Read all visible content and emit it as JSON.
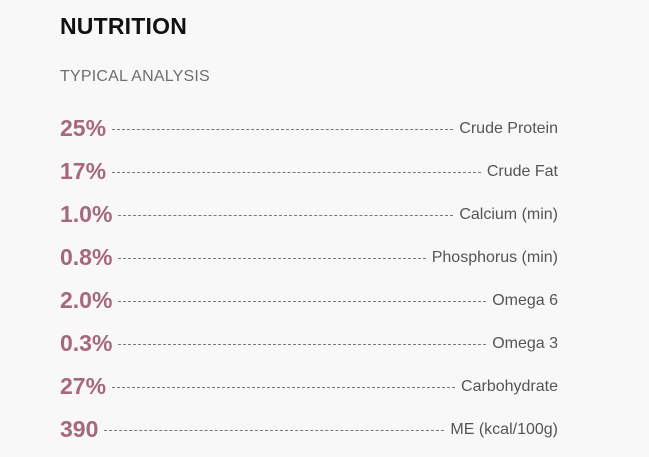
{
  "section": {
    "title": "NUTRITION",
    "subtitle": "TYPICAL ANALYSIS"
  },
  "accent_color": "#a6677f",
  "analysis": [
    {
      "value": "25%",
      "label": "Crude Protein"
    },
    {
      "value": "17%",
      "label": "Crude Fat"
    },
    {
      "value": "1.0%",
      "label": "Calcium (min)"
    },
    {
      "value": "0.8%",
      "label": "Phosphorus (min)"
    },
    {
      "value": "2.0%",
      "label": "Omega 6"
    },
    {
      "value": "0.3%",
      "label": "Omega 3"
    },
    {
      "value": "27%",
      "label": "Carbohydrate"
    },
    {
      "value": "390",
      "label": "ME (kcal/100g)"
    }
  ]
}
